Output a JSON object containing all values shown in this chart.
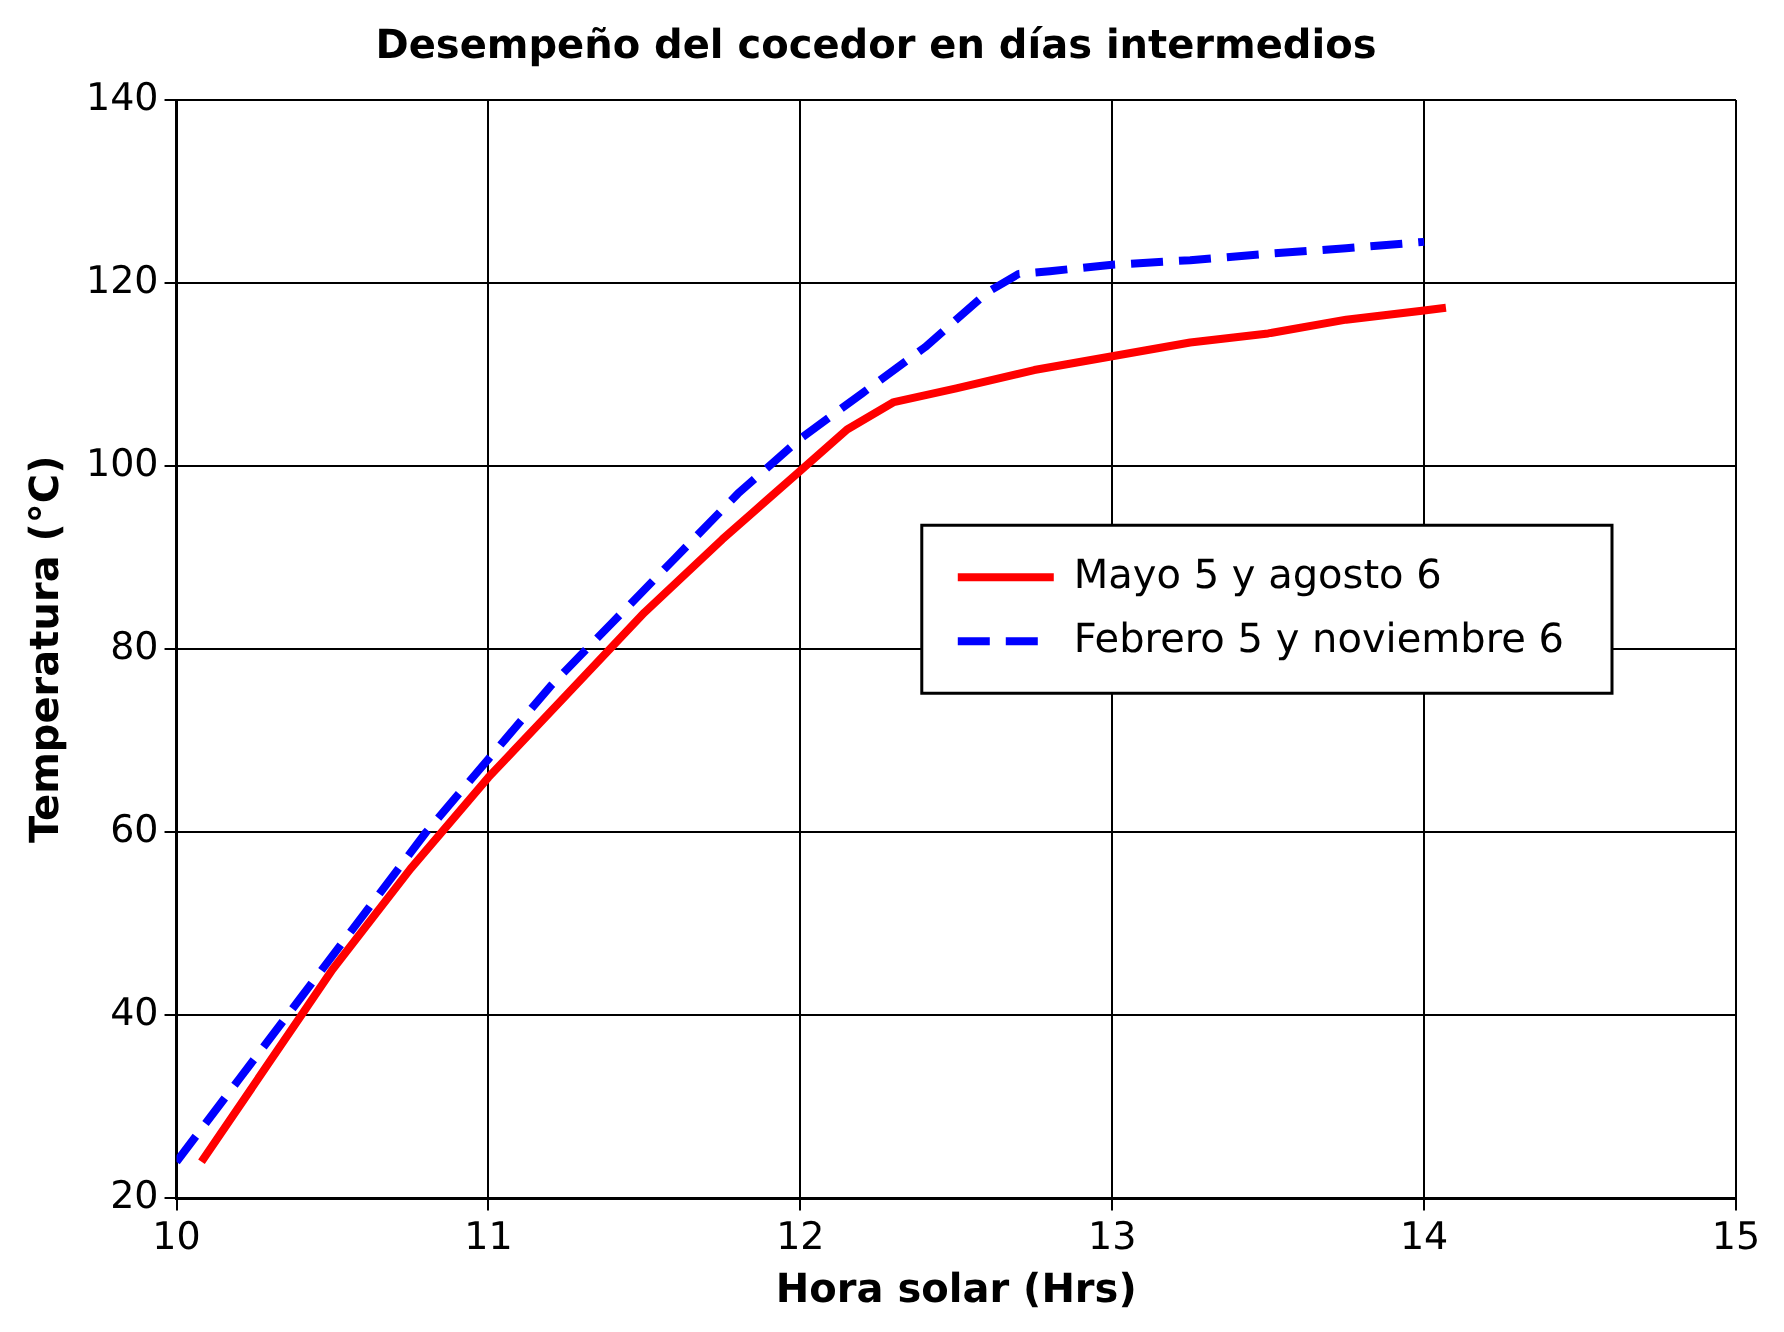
{
  "chart_data": {
    "type": "line",
    "title": "Desempeño del cocedor en días intermedios",
    "xlabel": "Hora solar (Hrs)",
    "ylabel": "Temperatura (°C)",
    "xlim": [
      10,
      15
    ],
    "xticks": [
      10,
      11,
      12,
      13,
      14,
      15
    ],
    "ylim": [
      20,
      140
    ],
    "yticks": [
      20,
      40,
      60,
      80,
      100,
      120,
      140
    ],
    "grid": true,
    "legend": "right",
    "marker": "none",
    "series": [
      {
        "name": "Mayo 5 y agosto 6",
        "color": "#ff0000",
        "line_style": "solid",
        "x": [
          10.08,
          10.3,
          10.5,
          10.75,
          11,
          11.25,
          11.5,
          11.75,
          12,
          12.15,
          12.3,
          12.5,
          12.75,
          13,
          13.25,
          13.5,
          13.75,
          14,
          14.07
        ],
        "values": [
          24,
          35,
          45,
          56,
          66,
          75,
          84,
          92,
          99.5,
          104,
          107,
          108.5,
          110.5,
          112,
          113.5,
          114.5,
          116,
          117,
          117.3
        ]
      },
      {
        "name": "Febrero 5 y noviembre 6",
        "color": "#0000ff",
        "line_style": "dashed",
        "x": [
          10,
          10.2,
          10.4,
          10.6,
          10.8,
          11,
          11.2,
          11.4,
          11.6,
          11.8,
          12,
          12.2,
          12.4,
          12.6,
          12.7,
          12.8,
          13,
          13.25,
          13.5,
          13.75,
          14
        ],
        "values": [
          24,
          33,
          42,
          51,
          60,
          68,
          76,
          83,
          90,
          97,
          103,
          108,
          113,
          119,
          121,
          121.3,
          122,
          122.5,
          123.2,
          123.8,
          124.5
        ]
      }
    ]
  }
}
